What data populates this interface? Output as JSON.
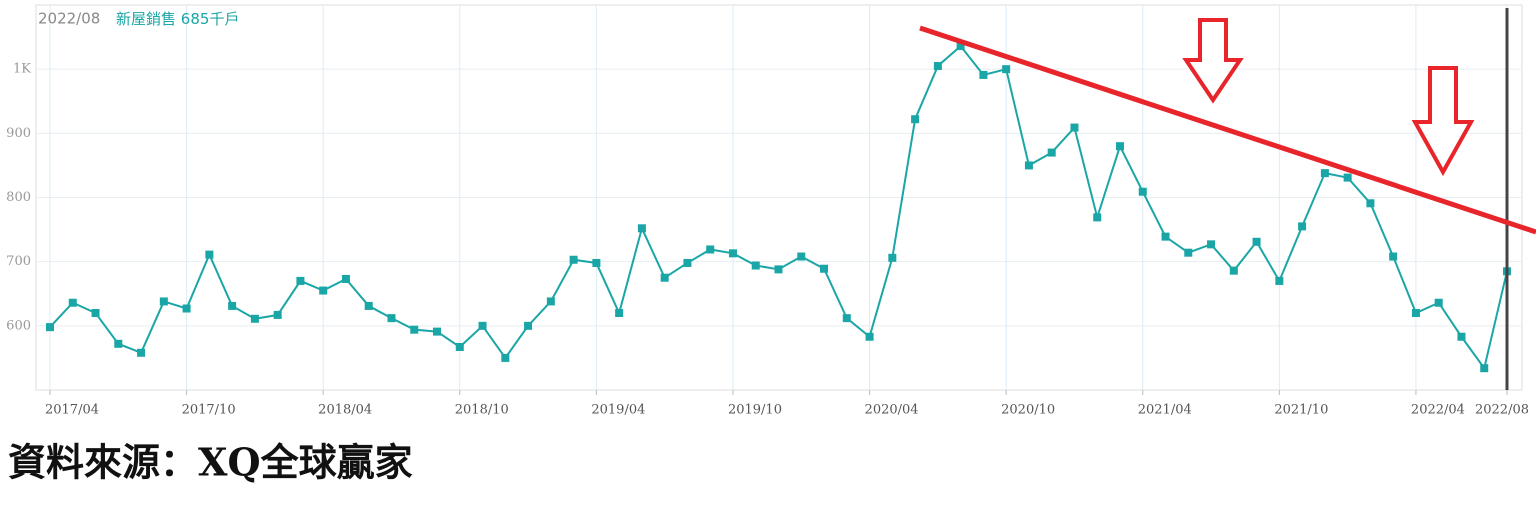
{
  "chart_data": {
    "type": "line",
    "header_date": "2022/08",
    "unit": "千戶",
    "source": "資料來源：XQ全球贏家",
    "categories": [
      "2017/04",
      null,
      null,
      null,
      null,
      null,
      "2017/10",
      null,
      null,
      null,
      null,
      null,
      "2018/04",
      null,
      null,
      null,
      null,
      null,
      "2018/10",
      null,
      null,
      null,
      null,
      null,
      "2019/04",
      null,
      null,
      null,
      null,
      null,
      "2019/10",
      null,
      null,
      null,
      null,
      null,
      "2020/04",
      null,
      null,
      null,
      null,
      null,
      "2020/10",
      null,
      null,
      null,
      null,
      null,
      "2021/04",
      null,
      null,
      null,
      null,
      null,
      "2021/10",
      null,
      null,
      null,
      null,
      null,
      "2022/04",
      null,
      null,
      null,
      "2022/08"
    ],
    "series": [
      {
        "name": "新屋銷售",
        "color": "#1aa6a6",
        "values": [
          598,
          636,
          620,
          572,
          558,
          638,
          627,
          711,
          631,
          611,
          617,
          670,
          655,
          673,
          631,
          612,
          594,
          591,
          567,
          600,
          550,
          600,
          638,
          703,
          698,
          620,
          752,
          675,
          698,
          719,
          713,
          694,
          688,
          708,
          689,
          612,
          583,
          706,
          922,
          1005,
          1036,
          991,
          1000,
          850,
          870,
          909,
          769,
          880,
          809,
          739,
          714,
          727,
          686,
          731,
          670,
          755,
          838,
          831,
          791,
          708,
          620,
          636,
          583,
          534,
          685
        ]
      }
    ],
    "ylim": [
      500,
      1100
    ],
    "yticks": [
      600,
      700,
      800,
      900,
      {
        "value": 1000,
        "label": "1K"
      }
    ],
    "grid": true
  }
}
